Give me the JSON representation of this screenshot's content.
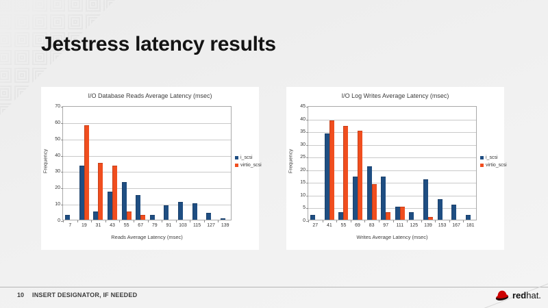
{
  "slide": {
    "title": "Jetstress latency results",
    "footer": {
      "page_number": "10",
      "designator": "INSERT DESIGNATOR, IF NEEDED",
      "logo_word_red": "red",
      "logo_word_hat": "hat."
    },
    "colors": {
      "series_blue": "#1f4e82",
      "series_orange": "#f04e1f",
      "redhat_red": "#cc0000",
      "gridline": "#c9c9c9"
    }
  },
  "chart_data": [
    {
      "type": "bar",
      "title": "I/O Database Reads Average Latency (msec)",
      "xlabel": "Reads Average Latency (msec)",
      "ylabel": "Frequency",
      "ylim": [
        0,
        70
      ],
      "ytick_step": 10,
      "grid": true,
      "legend_position": "right",
      "categories": [
        7,
        19,
        31,
        43,
        55,
        67,
        79,
        91,
        103,
        115,
        127,
        139
      ],
      "series": [
        {
          "name": "i_scsi",
          "color": "#1f4e82",
          "values": [
            3,
            33,
            5,
            17,
            23,
            15,
            3,
            9,
            11,
            10,
            4,
            1
          ]
        },
        {
          "name": "virtio_scsi",
          "color": "#f04e1f",
          "values": [
            0,
            58,
            35,
            33,
            5,
            3,
            0,
            0,
            0,
            0,
            0,
            0
          ]
        }
      ]
    },
    {
      "type": "bar",
      "title": "I/O Log Writes Average Latency (msec)",
      "xlabel": "Writes Average Latency (msec)",
      "ylabel": "Frequency",
      "ylim": [
        0,
        45
      ],
      "ytick_step": 5,
      "grid": true,
      "legend_position": "right",
      "categories": [
        27,
        41,
        55,
        69,
        83,
        97,
        111,
        125,
        139,
        153,
        167,
        181
      ],
      "series": [
        {
          "name": "i_scsi",
          "color": "#1f4e82",
          "values": [
            2,
            34,
            3,
            17,
            21,
            17,
            5,
            3,
            16,
            8,
            6,
            2
          ]
        },
        {
          "name": "virtio_scsi",
          "color": "#f04e1f",
          "values": [
            0,
            39,
            37,
            35,
            14,
            3,
            5,
            0,
            1,
            0,
            0,
            0
          ]
        }
      ]
    }
  ]
}
